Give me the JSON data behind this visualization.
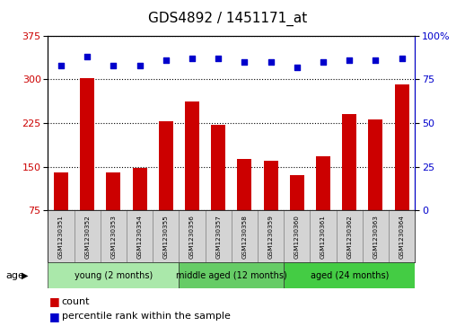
{
  "title": "GDS4892 / 1451171_at",
  "samples": [
    "GSM1230351",
    "GSM1230352",
    "GSM1230353",
    "GSM1230354",
    "GSM1230355",
    "GSM1230356",
    "GSM1230357",
    "GSM1230358",
    "GSM1230359",
    "GSM1230360",
    "GSM1230361",
    "GSM1230362",
    "GSM1230363",
    "GSM1230364"
  ],
  "counts": [
    140,
    302,
    140,
    148,
    228,
    262,
    222,
    163,
    160,
    135,
    168,
    240,
    232,
    292
  ],
  "percentile_ranks": [
    83,
    88,
    83,
    83,
    86,
    87,
    87,
    85,
    85,
    82,
    85,
    86,
    86,
    87
  ],
  "ylim_left": [
    75,
    375
  ],
  "ylim_right": [
    0,
    100
  ],
  "yticks_left": [
    75,
    150,
    225,
    300,
    375
  ],
  "yticks_right": [
    0,
    25,
    50,
    75,
    100
  ],
  "bar_color": "#cc0000",
  "dot_color": "#0000cc",
  "groups": [
    {
      "label": "young (2 months)",
      "start": 0,
      "end": 5,
      "color": "#aae8aa"
    },
    {
      "label": "middle aged (12 months)",
      "start": 5,
      "end": 9,
      "color": "#66cc66"
    },
    {
      "label": "aged (24 months)",
      "start": 9,
      "end": 14,
      "color": "#44cc44"
    }
  ],
  "age_label": "age",
  "legend_count": "count",
  "legend_percentile": "percentile rank within the sample",
  "background_color": "#ffffff",
  "plot_bg_color": "#ffffff",
  "title_fontsize": 11,
  "tick_fontsize": 8,
  "label_fontsize": 6,
  "group_fontsize": 7,
  "legend_fontsize": 8
}
